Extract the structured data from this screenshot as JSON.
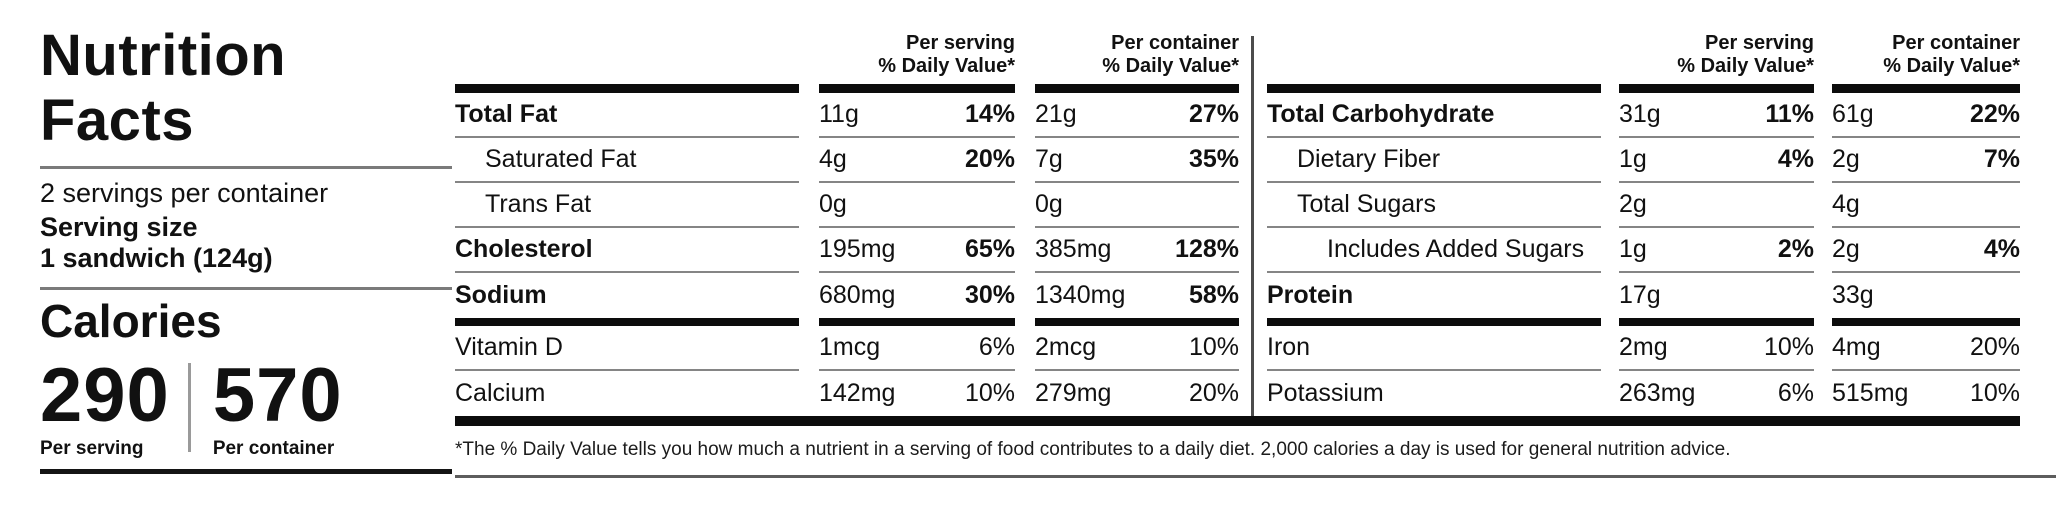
{
  "label": {
    "title_line1": "Nutrition",
    "title_line2": "Facts",
    "servings_per_container": "2 servings per container",
    "serving_size_label": "Serving size",
    "serving_size_value": "1 sandwich (124g)",
    "calories_label": "Calories",
    "calories_per_serving": "290",
    "calories_per_container": "570",
    "per_serving_label": "Per serving",
    "per_container_label": "Per container"
  },
  "table_headers": {
    "per_serving_line1": "Per serving",
    "per_serving_line2": "% Daily Value*",
    "per_container_line1": "Per container",
    "per_container_line2": "% Daily Value*"
  },
  "left_table": {
    "rows": [
      {
        "name": "Total Fat",
        "serving_amount": "11g",
        "serving_dv": "14%",
        "container_amount": "21g",
        "container_dv": "27%"
      },
      {
        "name": "Saturated Fat",
        "serving_amount": "4g",
        "serving_dv": "20%",
        "container_amount": "7g",
        "container_dv": "35%"
      },
      {
        "name": "Trans Fat",
        "serving_amount": "0g",
        "serving_dv": "",
        "container_amount": "0g",
        "container_dv": ""
      },
      {
        "name": "Cholesterol",
        "serving_amount": "195mg",
        "serving_dv": "65%",
        "container_amount": "385mg",
        "container_dv": "128%"
      },
      {
        "name": "Sodium",
        "serving_amount": "680mg",
        "serving_dv": "30%",
        "container_amount": "1340mg",
        "container_dv": "58%"
      },
      {
        "name": "Vitamin D",
        "serving_amount": "1mcg",
        "serving_dv": "6%",
        "container_amount": "2mcg",
        "container_dv": "10%"
      },
      {
        "name": "Calcium",
        "serving_amount": "142mg",
        "serving_dv": "10%",
        "container_amount": "279mg",
        "container_dv": "20%"
      }
    ]
  },
  "right_table": {
    "rows": [
      {
        "name": "Total Carbohydrate",
        "serving_amount": "31g",
        "serving_dv": "11%",
        "container_amount": "61g",
        "container_dv": "22%"
      },
      {
        "name": "Dietary Fiber",
        "serving_amount": "1g",
        "serving_dv": "4%",
        "container_amount": "2g",
        "container_dv": "7%"
      },
      {
        "name": "Total Sugars",
        "serving_amount": "2g",
        "serving_dv": "",
        "container_amount": "4g",
        "container_dv": ""
      },
      {
        "name": "Includes Added Sugars",
        "serving_amount": "1g",
        "serving_dv": "2%",
        "container_amount": "2g",
        "container_dv": "4%"
      },
      {
        "name": "Protein",
        "serving_amount": "17g",
        "serving_dv": "",
        "container_amount": "33g",
        "container_dv": ""
      },
      {
        "name": "Iron",
        "serving_amount": "2mg",
        "serving_dv": "10%",
        "container_amount": "4mg",
        "container_dv": "20%"
      },
      {
        "name": "Potassium",
        "serving_amount": "263mg",
        "serving_dv": "6%",
        "container_amount": "515mg",
        "container_dv": "10%"
      }
    ]
  },
  "footnote": "*The % Daily Value tells you how much a nutrient in a serving of food contributes to a daily diet. 2,000 calories a day is used for general nutrition advice.",
  "colors": {
    "text": "#111111",
    "thick_bar": "#0c0c0c",
    "thin_rule": "#858585",
    "divider": "#4c4c4c"
  }
}
